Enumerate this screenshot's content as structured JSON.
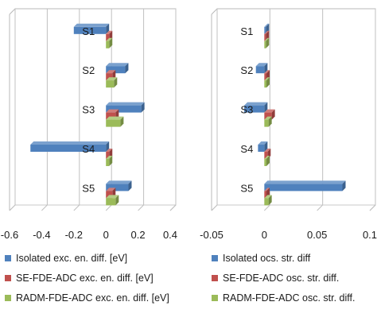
{
  "chart_data": [
    {
      "type": "bar",
      "orientation": "horizontal",
      "categories": [
        "S1",
        "S2",
        "S3",
        "S4",
        "S5"
      ],
      "xlim": [
        -0.6,
        0.4
      ],
      "xticks": [
        "-0.6",
        "-0.4",
        "-0.2",
        "0",
        "0.2",
        "0.4"
      ],
      "xtick_values": [
        -0.6,
        -0.4,
        -0.2,
        0,
        0.2,
        0.4
      ],
      "grid": "vertical",
      "legend_position": "bottom",
      "series": [
        {
          "name": "Isolated exc. en. diff. [eV]",
          "color": "#4f81bd",
          "values": [
            -0.2,
            0.12,
            0.22,
            -0.47,
            0.14
          ]
        },
        {
          "name": "SE-FDE-ADC exc. en. diff. [eV]",
          "color": "#c0504d",
          "values": [
            0.02,
            0.04,
            0.06,
            0.02,
            0.04
          ]
        },
        {
          "name": "RADM-FDE-ADC exc. en. diff. [eV]",
          "color": "#9bbb59",
          "values": [
            0.02,
            0.05,
            0.09,
            0.02,
            0.06
          ]
        }
      ]
    },
    {
      "type": "bar",
      "orientation": "horizontal",
      "categories": [
        "S1",
        "S2",
        "S3",
        "S4",
        "S5"
      ],
      "xlim": [
        -0.05,
        0.1
      ],
      "xticks": [
        "-0.05",
        "0",
        "0.05",
        "0.1"
      ],
      "xtick_values": [
        -0.05,
        0,
        0.05,
        0.1
      ],
      "grid": "vertical",
      "legend_position": "bottom",
      "series": [
        {
          "name": "Isolated ocs. str. diff",
          "color": "#4f81bd",
          "values": [
            0.001,
            -0.008,
            -0.019,
            -0.006,
            0.074
          ]
        },
        {
          "name": "SE-FDE-ADC osc. str. diff.",
          "color": "#c0504d",
          "values": [
            0.001,
            0.002,
            0.007,
            0.003,
            0.002
          ]
        },
        {
          "name": "RADM-FDE-ADC osc. str. diff.",
          "color": "#9bbb59",
          "values": [
            0.001,
            0.002,
            0.004,
            0.002,
            0.004
          ]
        }
      ]
    }
  ]
}
